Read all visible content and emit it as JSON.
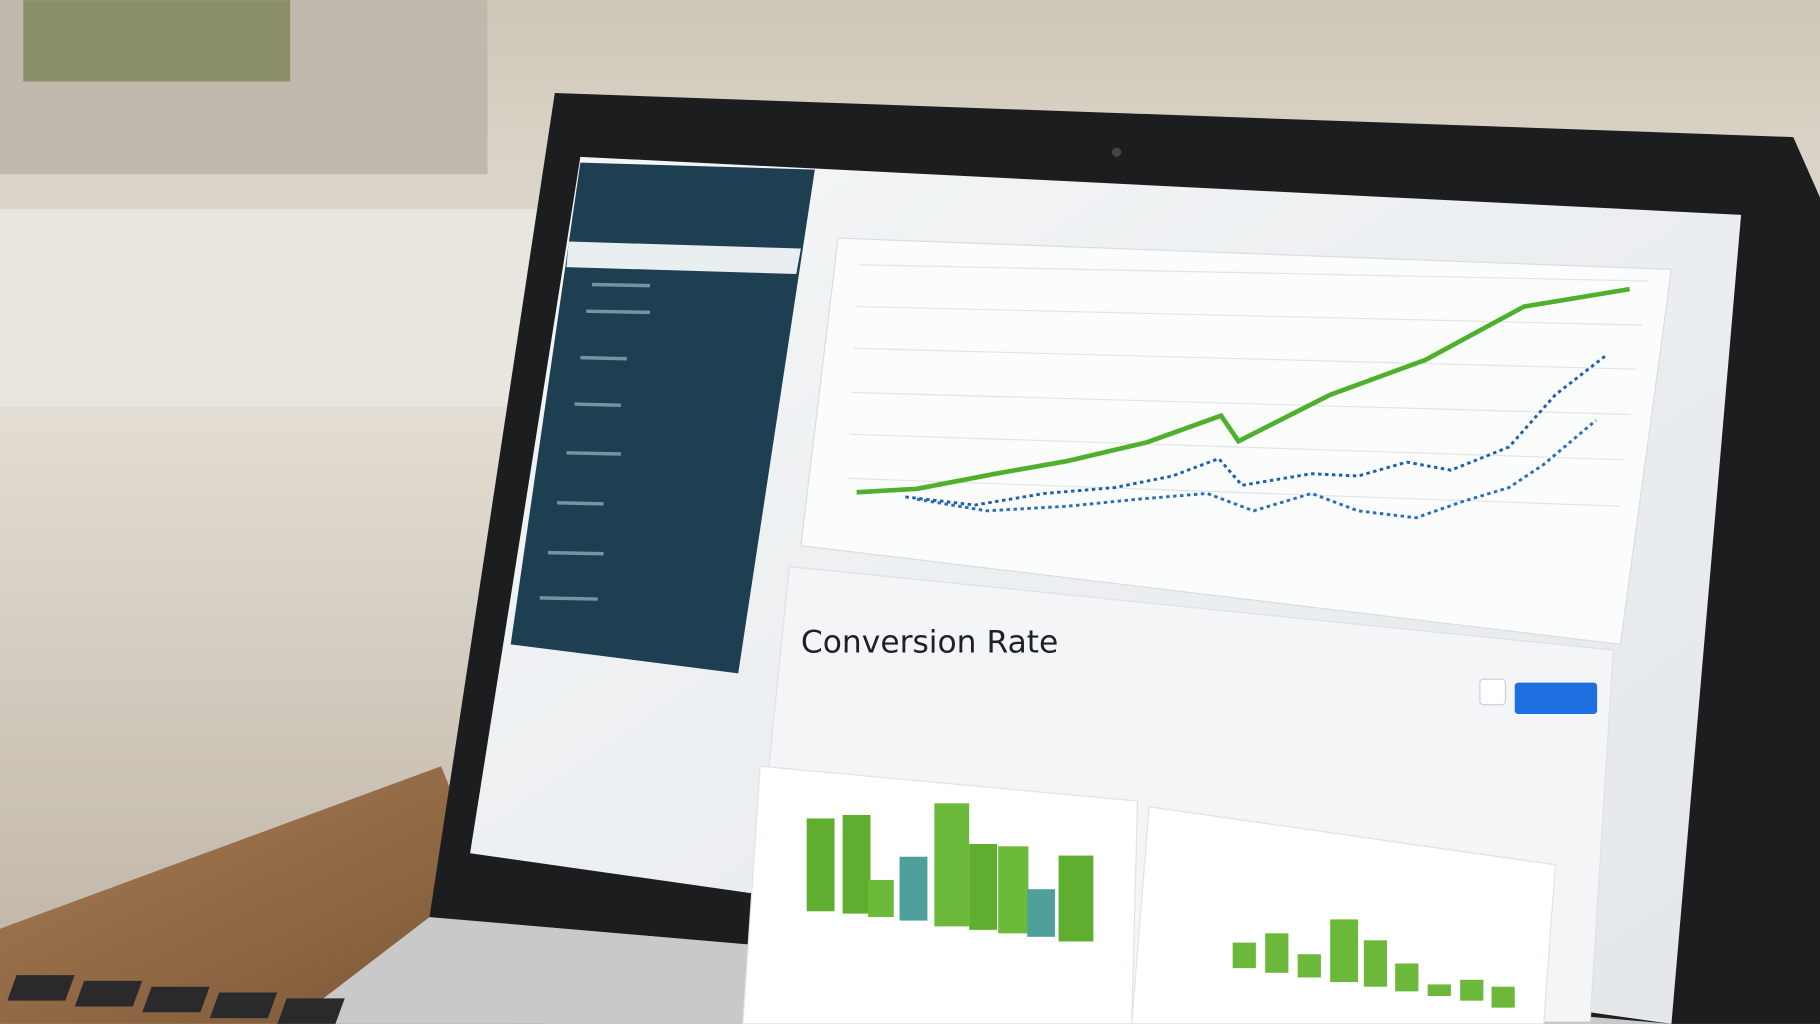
{
  "conversion_panel": {
    "title": "Conversion Rate"
  }
}
